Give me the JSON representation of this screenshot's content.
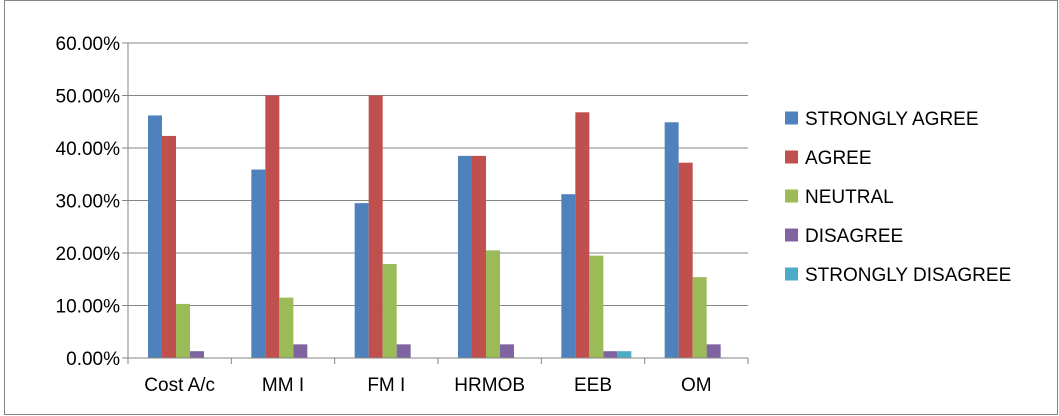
{
  "chart_data": {
    "type": "bar",
    "title": "",
    "xlabel": "",
    "ylabel": "",
    "categories": [
      "Cost A/c",
      "MM I",
      "FM I",
      "HRMOB",
      "EEB",
      "OM"
    ],
    "ylim": [
      0,
      0.6
    ],
    "y_ticks": [
      0,
      0.1,
      0.2,
      0.3,
      0.4,
      0.5,
      0.6
    ],
    "y_tick_labels": [
      "0.00%",
      "10.00%",
      "20.00%",
      "30.00%",
      "40.00%",
      "50.00%",
      "60.00%"
    ],
    "grid": true,
    "legend_position": "right",
    "series": [
      {
        "name": "STRONGLY AGREE",
        "color": "#4f81bd",
        "values": [
          0.462,
          0.359,
          0.295,
          0.385,
          0.312,
          0.449
        ]
      },
      {
        "name": "AGREE",
        "color": "#c0504d",
        "values": [
          0.423,
          0.5,
          0.5,
          0.385,
          0.468,
          0.372
        ]
      },
      {
        "name": "NEUTRAL",
        "color": "#9bbb59",
        "values": [
          0.103,
          0.115,
          0.179,
          0.205,
          0.195,
          0.154
        ]
      },
      {
        "name": "DISAGREE",
        "color": "#8064a2",
        "values": [
          0.013,
          0.026,
          0.026,
          0.026,
          0.013,
          0.026
        ]
      },
      {
        "name": "STRONGLY DISAGREE",
        "color": "#4bacc6",
        "values": [
          0,
          0,
          0,
          0,
          0.013,
          0
        ]
      }
    ]
  }
}
